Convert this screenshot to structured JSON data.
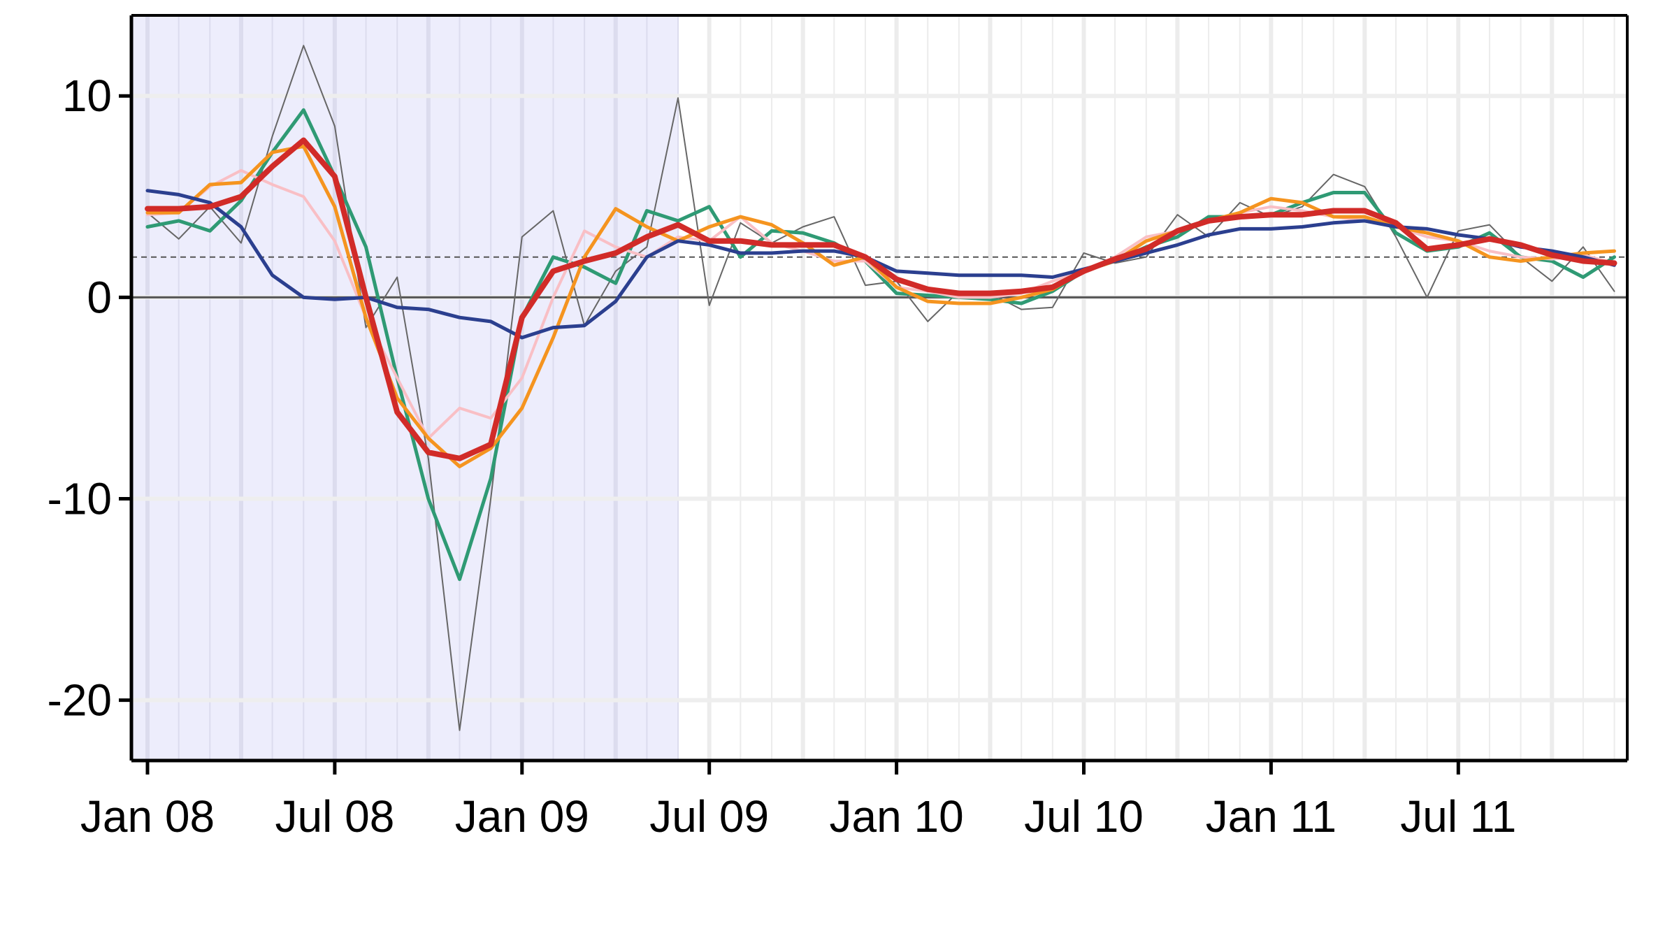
{
  "chart_data": {
    "type": "line",
    "title": "",
    "xlabel": "",
    "ylabel": "",
    "xlim": [
      "2008-01",
      "2011-12"
    ],
    "ylim": [
      -23,
      14
    ],
    "x_ticks": [
      {
        "date": "2008-01",
        "label": "Jan 08"
      },
      {
        "date": "2008-07",
        "label": "Jul 08"
      },
      {
        "date": "2009-01",
        "label": "Jan 09"
      },
      {
        "date": "2009-07",
        "label": "Jul 09"
      },
      {
        "date": "2010-01",
        "label": "Jan 10"
      },
      {
        "date": "2010-07",
        "label": "Jul 10"
      },
      {
        "date": "2011-01",
        "label": "Jan 11"
      },
      {
        "date": "2011-07",
        "label": "Jul 11"
      }
    ],
    "y_ticks": [
      10,
      0,
      -10,
      -20
    ],
    "reference_lines": [
      {
        "y": 0,
        "style": "solid",
        "color": "#555555"
      },
      {
        "y": 2,
        "style": "dashed",
        "color": "#555555"
      }
    ],
    "shaded_region": {
      "from": "2008-01",
      "to": "2009-06",
      "color": "#ededfc"
    },
    "grid": true,
    "x": [
      "2008-01",
      "2008-02",
      "2008-03",
      "2008-04",
      "2008-05",
      "2008-06",
      "2008-07",
      "2008-08",
      "2008-09",
      "2008-10",
      "2008-11",
      "2008-12",
      "2009-01",
      "2009-02",
      "2009-03",
      "2009-04",
      "2009-05",
      "2009-06",
      "2009-07",
      "2009-08",
      "2009-09",
      "2009-10",
      "2009-11",
      "2009-12",
      "2010-01",
      "2010-02",
      "2010-03",
      "2010-04",
      "2010-05",
      "2010-06",
      "2010-07",
      "2010-08",
      "2010-09",
      "2010-10",
      "2010-11",
      "2010-12",
      "2011-01",
      "2011-02",
      "2011-03",
      "2011-04",
      "2011-05",
      "2011-06",
      "2011-07",
      "2011-08",
      "2011-09",
      "2011-10",
      "2011-11",
      "2011-12"
    ],
    "series": [
      {
        "color": "#666666",
        "width": 2,
        "values": [
          4.2,
          2.9,
          4.5,
          2.7,
          8.0,
          12.5,
          8.5,
          -1.5,
          1.0,
          -8.0,
          -21.5,
          -10.0,
          3.0,
          4.3,
          -1.4,
          1.3,
          2.5,
          9.9,
          -0.4,
          3.7,
          2.7,
          3.5,
          4.0,
          0.6,
          0.8,
          -1.2,
          0.3,
          0.2,
          -0.6,
          -0.5,
          2.2,
          1.7,
          2.0,
          4.1,
          3.0,
          4.7,
          4.0,
          4.5,
          6.1,
          5.5,
          3.0,
          0.0,
          3.3,
          3.6,
          2.0,
          0.8,
          2.5,
          0.3
        ]
      },
      {
        "color": "#2f9a74",
        "width": 5,
        "values": [
          3.5,
          3.8,
          3.3,
          4.8,
          7.2,
          9.3,
          6.0,
          2.5,
          -4.0,
          -10.0,
          -14.0,
          -9.0,
          -1.0,
          2.0,
          1.5,
          0.7,
          4.3,
          3.8,
          4.5,
          2.0,
          3.3,
          3.2,
          2.7,
          1.8,
          0.2,
          0.1,
          0.0,
          -0.1,
          -0.3,
          0.3,
          1.3,
          1.8,
          2.5,
          3.0,
          4.0,
          4.0,
          4.1,
          4.7,
          5.2,
          5.2,
          3.2,
          2.3,
          2.5,
          3.2,
          2.0,
          1.8,
          1.0,
          2.0
        ]
      },
      {
        "color": "#f9bfc5",
        "width": 4,
        "values": [
          4.1,
          4.2,
          5.5,
          6.3,
          5.6,
          5.0,
          2.8,
          -1.0,
          -4.0,
          -7.0,
          -5.5,
          -6.0,
          -4.0,
          0.0,
          3.3,
          2.5,
          2.0,
          3.0,
          2.8,
          4.0,
          2.7,
          2.3,
          1.8,
          1.8,
          0.5,
          0.3,
          0.0,
          0.0,
          0.2,
          0.8,
          1.3,
          2.0,
          3.0,
          3.3,
          3.8,
          4.2,
          4.5,
          4.3,
          4.0,
          3.8,
          3.5,
          3.0,
          2.8,
          2.3,
          2.0,
          1.9,
          2.1,
          1.7
        ]
      },
      {
        "color": "#f5941f",
        "width": 5,
        "values": [
          4.2,
          4.2,
          5.6,
          5.7,
          7.2,
          7.5,
          4.5,
          -1.0,
          -5.0,
          -7.0,
          -8.4,
          -7.5,
          -5.5,
          -2.0,
          2.0,
          4.4,
          3.5,
          2.8,
          3.5,
          4.0,
          3.6,
          2.7,
          1.6,
          2.0,
          0.5,
          -0.2,
          -0.3,
          -0.3,
          0.0,
          0.4,
          1.3,
          1.8,
          2.8,
          3.3,
          3.8,
          4.2,
          4.9,
          4.7,
          4.0,
          4.0,
          3.5,
          3.2,
          2.8,
          2.0,
          1.8,
          2.0,
          2.2,
          2.3
        ]
      },
      {
        "color": "#2b3f8f",
        "width": 5,
        "values": [
          5.3,
          5.1,
          4.7,
          3.5,
          1.1,
          0.0,
          -0.1,
          0.0,
          -0.5,
          -0.6,
          -1.0,
          -1.2,
          -2.0,
          -1.5,
          -1.4,
          -0.2,
          2.0,
          2.8,
          2.6,
          2.2,
          2.2,
          2.3,
          2.3,
          2.0,
          1.3,
          1.2,
          1.1,
          1.1,
          1.1,
          1.0,
          1.4,
          1.8,
          2.2,
          2.6,
          3.1,
          3.4,
          3.4,
          3.5,
          3.7,
          3.8,
          3.5,
          3.4,
          3.1,
          2.9,
          2.5,
          2.3,
          2.0,
          1.6
        ]
      },
      {
        "color": "#d12b28",
        "width": 8,
        "values": [
          4.4,
          4.4,
          4.5,
          5.0,
          6.5,
          7.8,
          6.0,
          0.0,
          -5.7,
          -7.7,
          -8.0,
          -7.3,
          -1.0,
          1.3,
          1.8,
          2.2,
          3.0,
          3.6,
          2.8,
          2.8,
          2.6,
          2.6,
          2.6,
          2.0,
          0.9,
          0.4,
          0.2,
          0.2,
          0.3,
          0.5,
          1.3,
          1.9,
          2.4,
          3.3,
          3.8,
          4.0,
          4.1,
          4.1,
          4.3,
          4.3,
          3.7,
          2.4,
          2.6,
          2.9,
          2.6,
          2.1,
          1.8,
          1.7
        ]
      }
    ]
  }
}
